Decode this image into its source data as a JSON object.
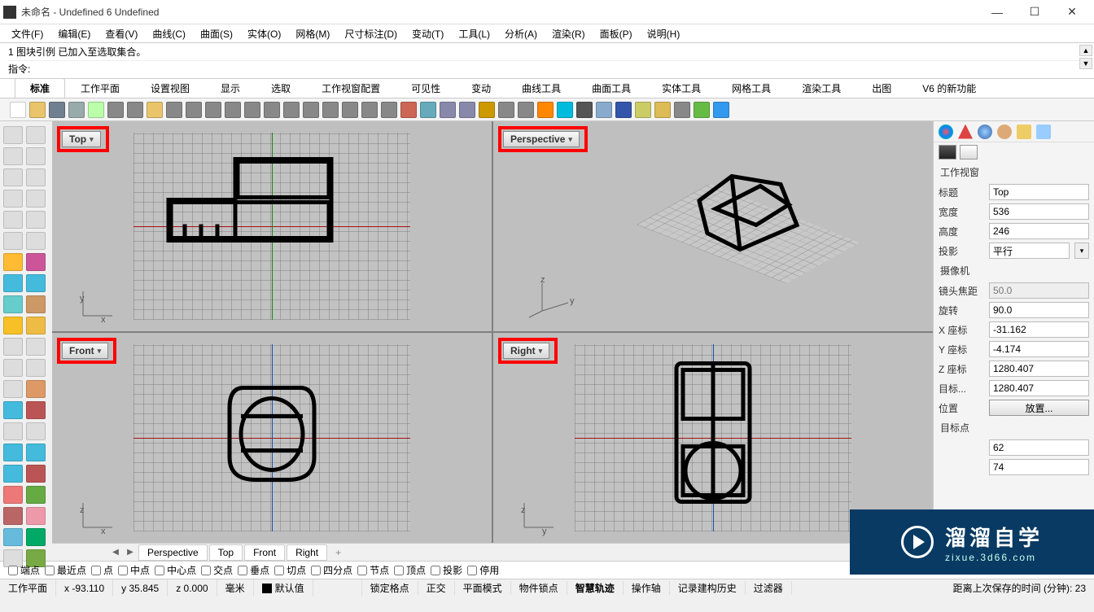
{
  "window": {
    "title": "未命名 - Undefined 6 Undefined",
    "min": "—",
    "max": "☐",
    "close": "✕"
  },
  "menu": [
    "文件(F)",
    "编辑(E)",
    "查看(V)",
    "曲线(C)",
    "曲面(S)",
    "实体(O)",
    "网格(M)",
    "尺寸标注(D)",
    "变动(T)",
    "工具(L)",
    "分析(A)",
    "渲染(R)",
    "面板(P)",
    "说明(H)"
  ],
  "cmd": {
    "history": "1 图块引例 已加入至选取集合。",
    "prompt_label": "指令:",
    "value": ""
  },
  "tabs": [
    "标准",
    "工作平面",
    "设置视图",
    "显示",
    "选取",
    "工作视窗配置",
    "可见性",
    "变动",
    "曲线工具",
    "曲面工具",
    "实体工具",
    "网格工具",
    "渲染工具",
    "出图",
    "V6 的新功能"
  ],
  "toolbar_colors": [
    "#ffffff",
    "#e9c46a",
    "#708090",
    "#9aa",
    "#bfa",
    "#888",
    "#888",
    "#e9c46a",
    "#888",
    "#888",
    "#888",
    "#888",
    "#888",
    "#888",
    "#888",
    "#888",
    "#888",
    "#888",
    "#888",
    "#888",
    "#c65",
    "#6ab",
    "#88a",
    "#88a",
    "#c90",
    "#888",
    "#888",
    "#f80",
    "#0bd",
    "#555",
    "#8ac",
    "#35a",
    "#cc6",
    "#db5",
    "#888",
    "#6b4",
    "#39e"
  ],
  "lefttools_colors": [
    "#ddd",
    "#ddd",
    "#ddd",
    "#ddd",
    "#ddd",
    "#ddd",
    "#ddd",
    "#ddd",
    "#ddd",
    "#ddd",
    "#ddd",
    "#ddd",
    "#fb3",
    "#c59",
    "#4bd",
    "#4bd",
    "#6cc",
    "#c96",
    "#f6c026",
    "#eb4",
    "#ddd",
    "#ddd",
    "#ddd",
    "#ddd",
    "#ddd",
    "#d96",
    "#4bd",
    "#b55",
    "#ddd",
    "#ddd",
    "#4bd",
    "#4bd",
    "#4bd",
    "#b55",
    "#e77",
    "#6a4",
    "#b66",
    "#e9a",
    "#6bd",
    "#0a6",
    "#ddd",
    "#7a4"
  ],
  "viewports": {
    "top": {
      "label": "Top",
      "axes": [
        "x",
        "y"
      ]
    },
    "perspective": {
      "label": "Perspective",
      "axes": [
        "y",
        "z"
      ]
    },
    "front": {
      "label": "Front",
      "axes": [
        "x",
        "z"
      ]
    },
    "right": {
      "label": "Right",
      "axes": [
        "y",
        "z"
      ]
    }
  },
  "vptabs": [
    "Perspective",
    "Top",
    "Front",
    "Right"
  ],
  "right_panel": {
    "section1": "工作视窗",
    "props": {
      "title_k": "标题",
      "title_v": "Top",
      "width_k": "宽度",
      "width_v": "536",
      "height_k": "高度",
      "height_v": "246",
      "proj_k": "投影",
      "proj_v": "平行"
    },
    "section2": "摄像机",
    "cam": {
      "focal_k": "镜头焦距",
      "focal_v": "50.0",
      "rot_k": "旋转",
      "rot_v": "90.0",
      "x_k": "X 座标",
      "x_v": "-31.162",
      "y_k": "Y 座标",
      "y_v": "-4.174",
      "z_k": "Z 座标",
      "z_v": "1280.407",
      "tgt_k": "目标...",
      "tgt_v": "1280.407",
      "pos_k": "位置",
      "pos_btn": "放置..."
    },
    "section3": "目标点",
    "overflow1": "62",
    "overflow2": "74"
  },
  "watermark": {
    "main": "溜溜自学",
    "sub": "zixue.3d66.com"
  },
  "osnap": [
    "端点",
    "最近点",
    "点",
    "中点",
    "中心点",
    "交点",
    "垂点",
    "切点",
    "四分点",
    "节点",
    "顶点",
    "投影",
    "停用"
  ],
  "status": {
    "plane": "工作平面",
    "x": "x -93.110",
    "y": "y 35.845",
    "z": "z 0.000",
    "unit": "毫米",
    "layer": "默认值",
    "items": [
      "锁定格点",
      "正交",
      "平面模式",
      "物件锁点",
      "智慧轨迹",
      "操作轴",
      "记录建构历史",
      "过滤器"
    ],
    "right": "距离上次保存的时间 (分钟): 23"
  }
}
